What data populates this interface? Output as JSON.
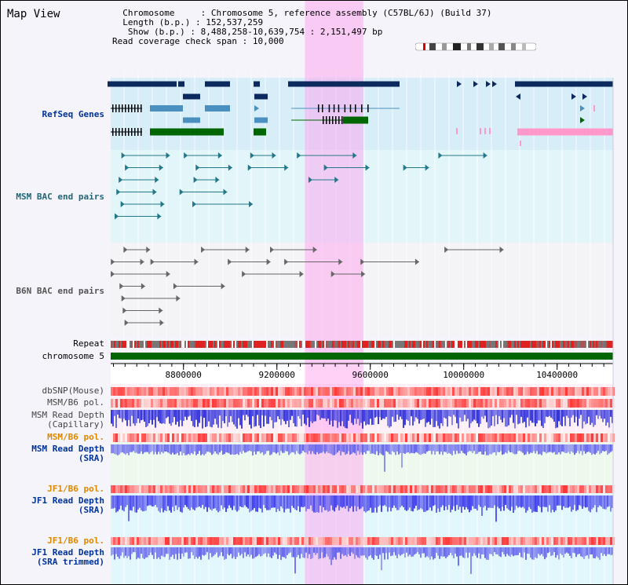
{
  "title": "Map View",
  "info": {
    "chromosome_key": "Chromosome",
    "chromosome_val": "Chromosome 5, reference assembly (C57BL/6J) (Build 37)",
    "length_key": "Length (b.p.)",
    "length_val": "152,537,259",
    "show_key": "Show (b.p.)",
    "show_val": "8,488,258-10,639,754 : 2,151,497 bp",
    "coverage_key": "Read coverage check span",
    "coverage_val": "10,000"
  },
  "tracks": {
    "refseq": "RefSeq Genes",
    "msm_bac": "MSM BAC end pairs",
    "b6n_bac": "B6N BAC end pairs",
    "repeat": "Repeat",
    "chromosome": "chromosome 5",
    "dbsnp": "dbSNP(Mouse)",
    "msm_b6_pol_1": "MSM/B6 pol.",
    "msm_depth_cap_1": "MSM Read Depth",
    "msm_depth_cap_2": "(Capillary)",
    "msm_b6_pol_2": "MSM/B6 pol.",
    "msm_depth_sra_1": "MSM Read Depth",
    "msm_depth_sra_2": "(SRA)",
    "jf1_b6_pol_1": "JF1/B6 pol.",
    "jf1_depth_sra_1": "JF1 Read Depth",
    "jf1_depth_sra_2": "(SRA)",
    "jf1_b6_pol_2": "JF1/B6 pol.",
    "jf1_depth_trim_1": "JF1 Read Depth",
    "jf1_depth_trim_2": "(SRA trimmed)"
  },
  "axis": {
    "range_bp": [
      8488258,
      10639754
    ],
    "ticks": [
      "8800000",
      "9200000",
      "9600000",
      "10000000",
      "10400000"
    ],
    "tick_values": [
      8800000,
      9200000,
      9600000,
      10000000,
      10400000
    ]
  },
  "highlight_bp": [
    9320000,
    9570000
  ],
  "colors": {
    "refseq_dark": "#0d2a5e",
    "refseq_light": "#4b8fbf",
    "refseq_green": "#006600",
    "refseq_pink": "#ff99cc",
    "msm_bac": "#22778a",
    "b6n_bac": "#666666",
    "highlight": "#ff99ee",
    "chromosome_bar": "#006600",
    "depth_blue": "#3333dd",
    "pol_red": "#ee3333"
  }
}
